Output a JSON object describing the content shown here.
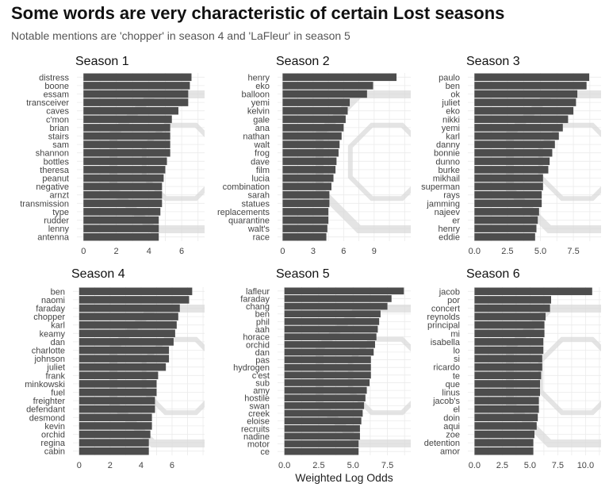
{
  "colors": {
    "bar": "#4d4d4d",
    "grid": "#ebebeb",
    "watermark": "#d9d9d9"
  },
  "chart_data": {
    "type": "bar",
    "title": "Some words are very characteristic of certain Lost seasons",
    "subtitle": "Notable mentions are 'chopper' in season 4 and 'LaFleur' in season 5",
    "xlabel": "Weighted Log Odds",
    "grid": true,
    "orientation": "horizontal",
    "panels": [
      {
        "title": "Season 1",
        "categories": [
          "distress",
          "boone",
          "essam",
          "transceiver",
          "caves",
          "c'mon",
          "brian",
          "stairs",
          "sam",
          "shannon",
          "bottles",
          "theresa",
          "peanut",
          "negative",
          "arnzt",
          "transmission",
          "type",
          "rudder",
          "lenny",
          "antenna"
        ],
        "values": [
          6.6,
          6.5,
          6.4,
          6.4,
          5.8,
          5.4,
          5.3,
          5.3,
          5.3,
          5.3,
          5.1,
          5.0,
          4.9,
          4.8,
          4.8,
          4.8,
          4.7,
          4.6,
          4.6,
          4.6
        ],
        "xlim": [
          -0.4,
          7.4
        ],
        "ticks": [
          0,
          2,
          4,
          6
        ],
        "tick_labels": [
          "0",
          "2",
          "4",
          "6"
        ]
      },
      {
        "title": "Season 2",
        "categories": [
          "henry",
          "eko",
          "balloon",
          "yemi",
          "kelvin",
          "gale",
          "ana",
          "nathan",
          "walt",
          "frog",
          "dave",
          "film",
          "lucia",
          "combination",
          "sarah",
          "statues",
          "replacements",
          "quarantine",
          "walt's",
          "race"
        ],
        "values": [
          11.2,
          8.9,
          8.3,
          6.6,
          6.4,
          6.2,
          6.0,
          5.8,
          5.6,
          5.5,
          5.3,
          5.2,
          5.0,
          4.8,
          4.6,
          4.6,
          4.5,
          4.5,
          4.4,
          4.3
        ],
        "xlim": [
          -0.5,
          12.6
        ],
        "ticks": [
          0,
          3,
          6,
          9
        ],
        "tick_labels": [
          "0",
          "3",
          "6",
          "9"
        ]
      },
      {
        "title": "Season 3",
        "categories": [
          "paulo",
          "ben",
          "ok",
          "juliet",
          "eko",
          "nikki",
          "yemi",
          "karl",
          "danny",
          "bonnie",
          "dunno",
          "burke",
          "mikhail",
          "superman",
          "rays",
          "jamming",
          "najeev",
          "er",
          "henry",
          "eddie"
        ],
        "values": [
          8.7,
          8.5,
          7.8,
          7.7,
          7.5,
          7.1,
          6.7,
          6.4,
          6.1,
          5.9,
          5.7,
          5.6,
          5.2,
          5.2,
          5.1,
          5.1,
          4.9,
          4.8,
          4.7,
          4.6
        ],
        "xlim": [
          -0.5,
          9.6
        ],
        "ticks": [
          0,
          2.5,
          5,
          7.5
        ],
        "tick_labels": [
          "0.0",
          "2.5",
          "5.0",
          "7.5"
        ]
      },
      {
        "title": "Season 4",
        "categories": [
          "ben",
          "naomi",
          "faraday",
          "chopper",
          "karl",
          "keamy",
          "dan",
          "charlotte",
          "johnson",
          "juliet",
          "frank",
          "minkowski",
          "fuel",
          "freighter",
          "defendant",
          "desmond",
          "kevin",
          "orchid",
          "regina",
          "cabin"
        ],
        "values": [
          7.3,
          7.1,
          6.5,
          6.4,
          6.3,
          6.2,
          6.1,
          5.8,
          5.8,
          5.6,
          5.1,
          5.0,
          5.0,
          4.9,
          4.9,
          4.7,
          4.7,
          4.6,
          4.5,
          4.5
        ],
        "xlim": [
          -0.4,
          8.1
        ],
        "ticks": [
          0,
          2,
          4,
          6
        ],
        "tick_labels": [
          "0",
          "2",
          "4",
          "6"
        ]
      },
      {
        "title": "Season 5",
        "categories": [
          "lafleur",
          "faraday",
          "chang",
          "ben",
          "phil",
          "aah",
          "horace",
          "orchid",
          "dan",
          "pas",
          "hydrogen",
          "c'est",
          "sub",
          "amy",
          "hostile",
          "swan",
          "creek",
          "eloise",
          "recruits",
          "nadine",
          "motor",
          "ce"
        ],
        "values": [
          8.7,
          7.8,
          7.5,
          7.0,
          6.9,
          6.8,
          6.7,
          6.6,
          6.5,
          6.3,
          6.3,
          6.3,
          6.2,
          6.0,
          5.9,
          5.8,
          5.7,
          5.6,
          5.5,
          5.5,
          5.4,
          5.4
        ],
        "xlim": [
          -0.5,
          9.2
        ],
        "ticks": [
          0,
          2.5,
          5,
          7.5
        ],
        "tick_labels": [
          "0.0",
          "2.5",
          "5.0",
          "7.5"
        ]
      },
      {
        "title": "Season 6",
        "categories": [
          "jacob",
          "por",
          "concert",
          "reynolds",
          "principal",
          "mi",
          "isabella",
          "lo",
          "si",
          "ricardo",
          "te",
          "que",
          "linus",
          "jacob's",
          "el",
          "doin",
          "aqui",
          "zoe",
          "detention",
          "amor"
        ],
        "values": [
          10.6,
          6.9,
          6.8,
          6.4,
          6.3,
          6.3,
          6.2,
          6.2,
          6.1,
          6.1,
          6.0,
          5.9,
          5.9,
          5.8,
          5.8,
          5.7,
          5.6,
          5.4,
          5.3,
          5.3
        ],
        "xlim": [
          -0.6,
          11.4
        ],
        "ticks": [
          0,
          2.5,
          5,
          7.5,
          10
        ],
        "tick_labels": [
          "0.0",
          "2.5",
          "5.0",
          "7.5",
          "10.0"
        ]
      }
    ]
  }
}
